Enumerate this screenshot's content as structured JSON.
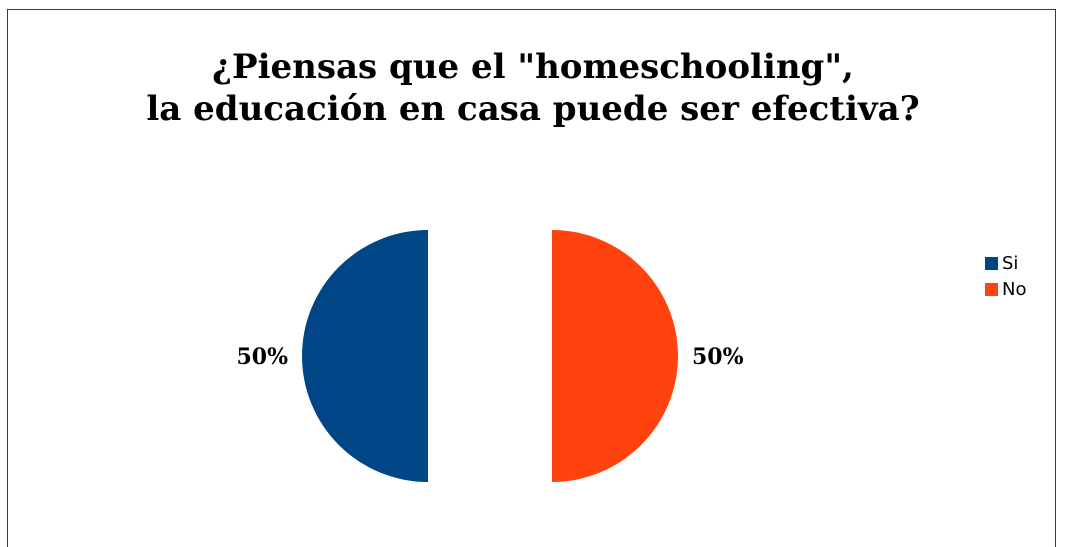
{
  "chart_data": {
    "type": "pie",
    "title": "¿Piensas que el \"homeschooling\", la educación en casa puede ser efectiva?",
    "title_lines": [
      "¿Piensas que el \"homeschooling\",",
      "la educación en casa puede ser efectiva?"
    ],
    "categories": [
      "Si",
      "No"
    ],
    "values": [
      50,
      50
    ],
    "data_labels": [
      "50%",
      "50%"
    ],
    "colors": [
      "#004586",
      "#ff420e"
    ],
    "exploded": true,
    "legend_position": "right"
  }
}
